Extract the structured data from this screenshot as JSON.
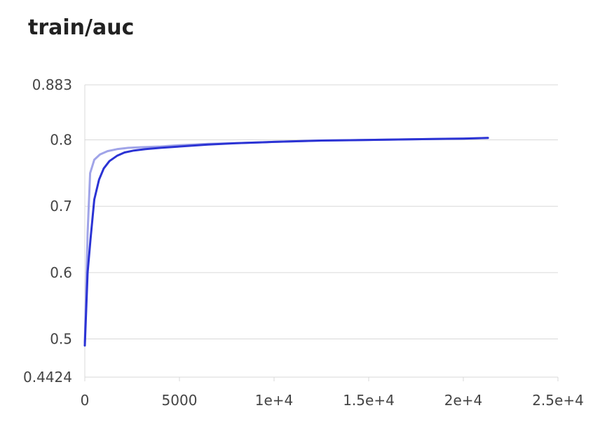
{
  "chart_data": {
    "type": "line",
    "title": "train/auc",
    "xlabel": "",
    "ylabel": "",
    "xlim": [
      0,
      25000
    ],
    "ylim": [
      0.4424,
      0.883
    ],
    "x_ticks": [
      {
        "value": 0,
        "label": "0"
      },
      {
        "value": 5000,
        "label": "5000"
      },
      {
        "value": 10000,
        "label": "1e+4"
      },
      {
        "value": 15000,
        "label": "1.5e+4"
      },
      {
        "value": 20000,
        "label": "2e+4"
      },
      {
        "value": 25000,
        "label": "2.5e+4"
      }
    ],
    "y_ticks": [
      {
        "value": 0.4424,
        "label": "0.4424"
      },
      {
        "value": 0.5,
        "label": "0.5"
      },
      {
        "value": 0.6,
        "label": "0.6"
      },
      {
        "value": 0.7,
        "label": "0.7"
      },
      {
        "value": 0.8,
        "label": "0.8"
      },
      {
        "value": 0.883,
        "label": "0.883"
      }
    ],
    "grid": true,
    "series": [
      {
        "color": "#a0a4e8",
        "x": [
          0,
          150,
          280,
          500,
          800,
          1200,
          1700,
          2300,
          3000,
          4000,
          5000,
          6500,
          8000,
          10000,
          12500,
          15000,
          17500,
          20000,
          21300
        ],
        "y": [
          0.495,
          0.66,
          0.75,
          0.77,
          0.778,
          0.783,
          0.786,
          0.788,
          0.789,
          0.79,
          0.792,
          0.794,
          0.795,
          0.797,
          0.799,
          0.8,
          0.801,
          0.802,
          0.803
        ]
      },
      {
        "color": "#2b33d4",
        "x": [
          0,
          150,
          300,
          500,
          750,
          1000,
          1300,
          1700,
          2100,
          2600,
          3200,
          4000,
          5000,
          6500,
          8000,
          10000,
          12500,
          15000,
          17500,
          20000,
          21300
        ],
        "y": [
          0.49,
          0.6,
          0.65,
          0.71,
          0.74,
          0.757,
          0.768,
          0.776,
          0.781,
          0.784,
          0.786,
          0.788,
          0.79,
          0.793,
          0.795,
          0.797,
          0.799,
          0.8,
          0.801,
          0.802,
          0.803
        ]
      }
    ]
  }
}
